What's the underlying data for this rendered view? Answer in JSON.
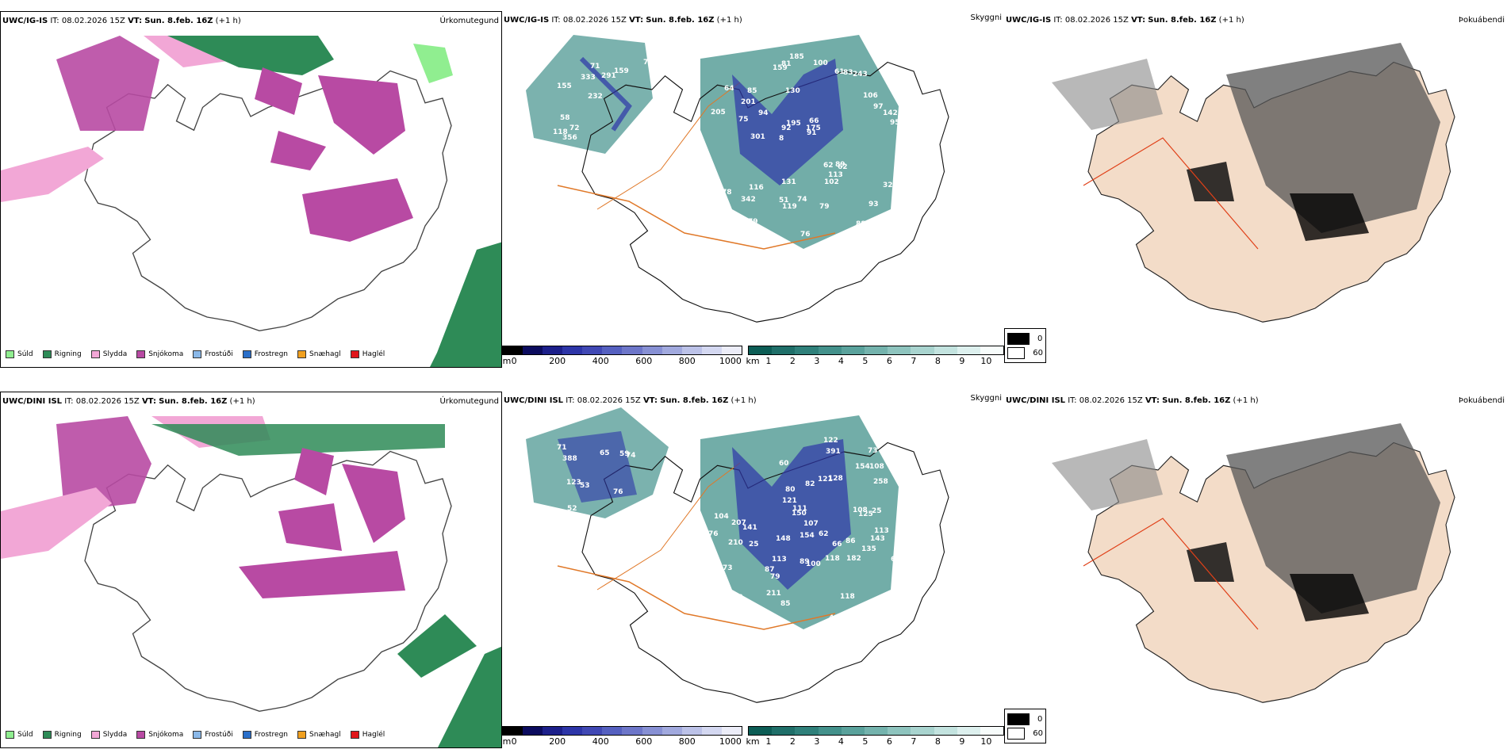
{
  "rows": [
    {
      "model": "UWC/IG-IS",
      "it_label": "IT:",
      "it_value": "08.02.2026 15Z",
      "vt_label": "VT:",
      "vt_value": "Sun. 8.feb. 16Z",
      "lead": "(+1 h)",
      "labels_snow": [
        "258",
        "155",
        "75",
        "232",
        "159",
        "356",
        "71",
        "291",
        "58",
        "333",
        "118",
        "72",
        "130",
        "66",
        "62",
        "64",
        "81",
        "95",
        "62",
        "97",
        "8",
        "51",
        "92",
        "85",
        "61",
        "116",
        "88",
        "93",
        "89",
        "76",
        "94",
        "75",
        "102",
        "79",
        "142",
        "175",
        "283",
        "119",
        "91",
        "78",
        "106",
        "147",
        "113",
        "79",
        "342",
        "235",
        "89",
        "74",
        "243",
        "185",
        "301",
        "205",
        "201",
        "83",
        "108",
        "100",
        "159",
        "195",
        "328",
        "131"
      ],
      "labels_snow_pos_set": "a"
    },
    {
      "model": "UWC/DINI ISL",
      "it_label": "IT:",
      "it_value": "08.02.2026 15Z",
      "vt_label": "VT:",
      "vt_value": "Sun. 8.feb. 16Z",
      "lead": "(+1 h)",
      "labels_snow": [
        "185",
        "123",
        "76",
        "71",
        "88",
        "388",
        "52",
        "53",
        "74",
        "65",
        "59",
        "58",
        "79",
        "60",
        "62",
        "73",
        "86",
        "107",
        "104",
        "122",
        "73",
        "82",
        "108",
        "64",
        "113",
        "207",
        "25",
        "154",
        "150",
        "108",
        "118",
        "210",
        "87",
        "128",
        "80",
        "135",
        "143",
        "118",
        "154",
        "403",
        "113",
        "100",
        "211",
        "122",
        "148",
        "141",
        "258",
        "391",
        "121",
        "89",
        "66",
        "25",
        "182",
        "125",
        "121",
        "76",
        "85",
        "111"
      ],
      "labels_snow_pos_set": "b"
    }
  ],
  "panel_titles": {
    "precip_type": "Úrkomutegund",
    "visibility": "Skyggni",
    "fog": "Þokuábendi"
  },
  "precip_legend": [
    {
      "label": "Súld",
      "color": "#90ee90"
    },
    {
      "label": "Rigning",
      "color": "#2e8b57"
    },
    {
      "label": "Slydda",
      "color": "#f2a7d6"
    },
    {
      "label": "Snjókoma",
      "color": "#b84aa3"
    },
    {
      "label": "Frostúði",
      "color": "#8ab8e8"
    },
    {
      "label": "Frostregn",
      "color": "#2a6fc9"
    },
    {
      "label": "Snæhagl",
      "color": "#f0a020"
    },
    {
      "label": "Haglél",
      "color": "#e0161b"
    }
  ],
  "snow_scale": {
    "unit": "m",
    "ticks": [
      "0",
      "200",
      "400",
      "600",
      "800",
      "1000"
    ],
    "colors": [
      "#000000",
      "#0b0b5e",
      "#1c1f8a",
      "#2d35a8",
      "#4048b4",
      "#5560c0",
      "#6d76c9",
      "#8790d4",
      "#a1a9de",
      "#bcc2e8",
      "#d4d8f1",
      "#ecedf8"
    ]
  },
  "vis_scale": {
    "unit": "km",
    "ticks": [
      "1",
      "2",
      "3",
      "4",
      "5",
      "6",
      "7",
      "8",
      "9",
      "10"
    ],
    "colors": [
      "#0c5d55",
      "#1f6f69",
      "#2f807a",
      "#43918b",
      "#5aa29c",
      "#74b3ad",
      "#8ec4be",
      "#a9d4cf",
      "#c3e3df",
      "#ddf0ee",
      "#f7fcfb"
    ]
  },
  "fog_legend": [
    {
      "value": "0",
      "color": "#000000"
    },
    {
      "value": "60",
      "color": "#ffffff"
    }
  ]
}
